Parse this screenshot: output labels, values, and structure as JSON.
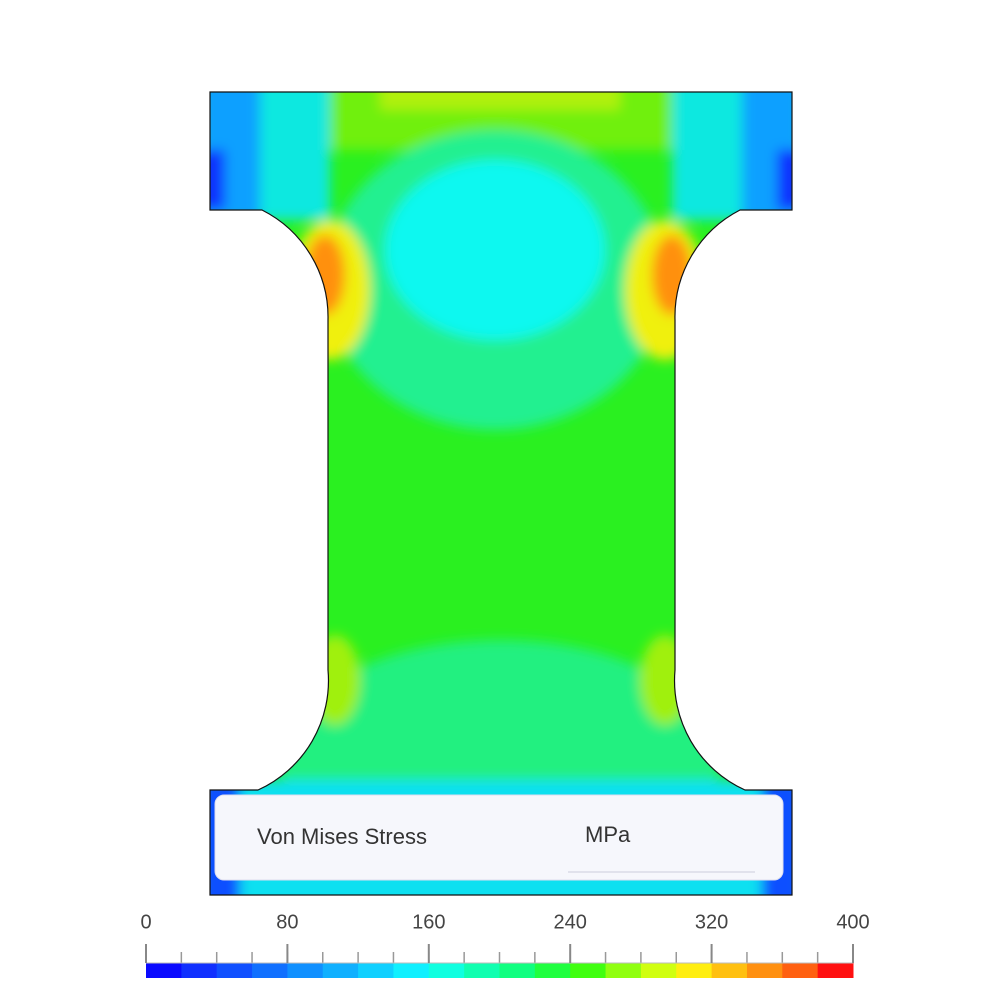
{
  "legend": {
    "title": "Von Mises Stress",
    "unit": "MPa"
  },
  "colorbar": {
    "min": 0,
    "max": 400,
    "ticks": [
      0,
      80,
      160,
      240,
      320,
      400
    ],
    "colors": [
      "#0a0aff",
      "#1030ff",
      "#1050ff",
      "#1070ff",
      "#1090ff",
      "#10b0ff",
      "#10d0ff",
      "#10f0ff",
      "#10ffe0",
      "#10ffb0",
      "#10ff80",
      "#20ff40",
      "#40ff10",
      "#90ff10",
      "#d0ff10",
      "#ffee10",
      "#ffc010",
      "#ff9010",
      "#ff6010",
      "#ff1010"
    ]
  }
}
